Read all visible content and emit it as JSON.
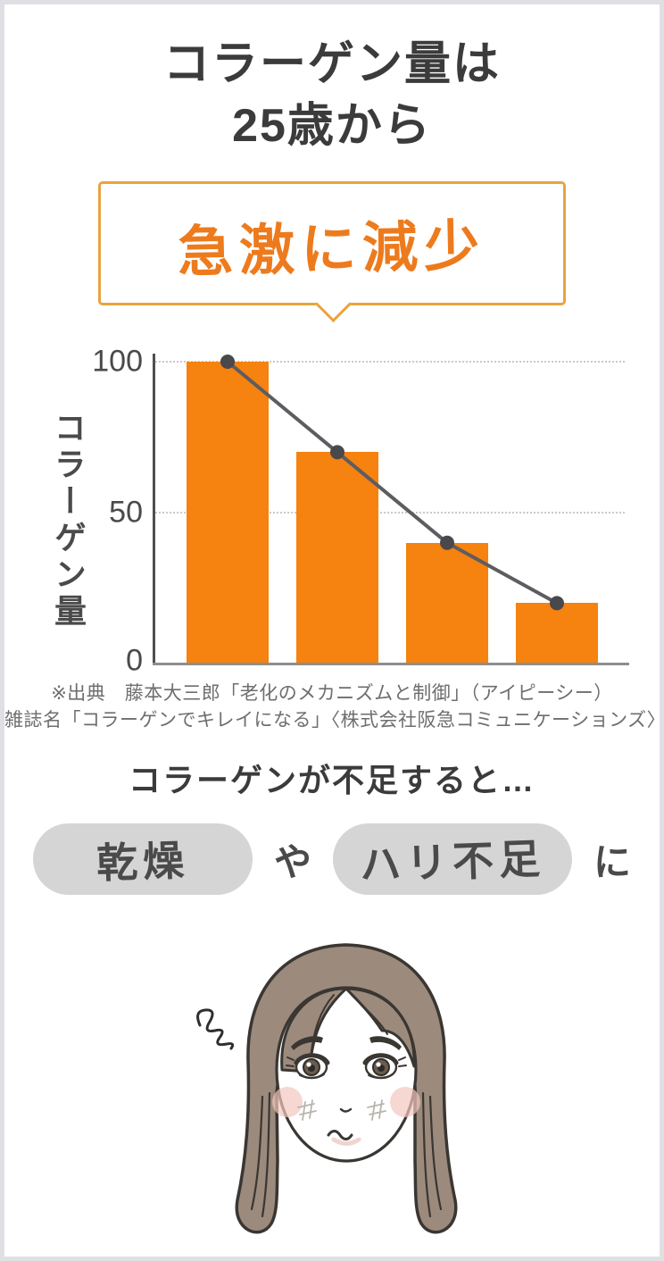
{
  "page": {
    "title_line1": "コラーゲン量は",
    "title_line2": "25歳から",
    "bubble_text": "急激に減少",
    "source_line1": "※出典　藤本大三郎「老化のメカニズムと制御」（アイピーシー）",
    "source_line2": "雑誌名「コラーゲンでキレイになる」〈株式会社阪急コミュニケーションズ〉",
    "subtitle": "コラーゲンが不足すると…",
    "badge1": "乾燥",
    "connector1": "や",
    "badge2": "ハリ不足",
    "connector2": "に"
  },
  "chart_data": {
    "type": "bar",
    "title": "",
    "categories": [
      "",
      "",
      "",
      ""
    ],
    "x_tick_labels": [],
    "values": [
      100,
      70,
      40,
      20
    ],
    "line_overlay_values": [
      100,
      70,
      40,
      20
    ],
    "xlabel": "",
    "ylabel": "コラーゲン量",
    "ylim": [
      0,
      100
    ],
    "yticks": [
      100,
      50,
      0
    ],
    "grid": "horizontal dotted at 50 and 100",
    "legend": "none",
    "bar_color": "#F6820F",
    "line_color": "#5D5D61",
    "dot_color": "#48484D"
  },
  "colors": {
    "c-frame": "#E0E0E4",
    "c-title": "#3B3B3B",
    "c-accent": "#F6820F",
    "c-bubble-border": "#E8A43E",
    "c-bubble-text": "#ED7B1D",
    "c-grid": "#C9C9C9",
    "c-axis": "#4F4F4F",
    "c-source": "#6E6E6E",
    "c-pill": "#D5D5D5",
    "c-pill-text": "#4A4A4A"
  }
}
